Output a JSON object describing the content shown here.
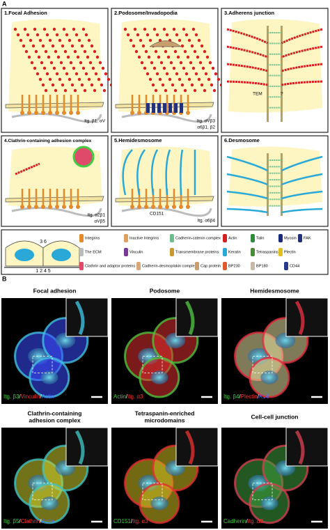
{
  "figure": {
    "panel_a_label": "A",
    "panel_b_label": "B"
  },
  "schematics": [
    {
      "title": "1.Focal Adhesion",
      "notes": [
        "Itg. β1, αV"
      ]
    },
    {
      "title": "2.Podosome/Invadopodia",
      "notes": [
        "Itg. αVβ3",
        "α6β1, β2"
      ]
    },
    {
      "title": "3.Adherens junction",
      "notes": [
        "TEM",
        "?"
      ]
    },
    {
      "title": "4.Clathrin-containing adhesion complex",
      "notes": [
        "Itg. α2β1",
        "αVβ5"
      ]
    },
    {
      "title": "5.Hemidesmosome",
      "notes": [
        "CD151",
        "Itg. α6β4"
      ]
    },
    {
      "title": "6.Desmosome",
      "notes": []
    }
  ],
  "legend": {
    "cell_numbers_top": "3 6",
    "cell_numbers_bottom": "1 2 4 5",
    "rows": [
      [
        {
          "label": "Integrins",
          "color": "#e58a2a"
        },
        {
          "label": "Inactive Integrins",
          "color": "#e0a060"
        },
        {
          "label": "Cadherin-catenin complex",
          "color": "#6bbf8a"
        },
        {
          "label": "Actin",
          "color": "#d62020"
        },
        {
          "label": "Talin",
          "color": "#2e8b3a"
        },
        {
          "label": "Myosin",
          "color": "#1a2a7a"
        },
        {
          "label": "FAK",
          "color": "#23307a"
        }
      ],
      [
        {
          "label": "The ECM",
          "color": "#bbbbbb"
        },
        {
          "label": "Vinculin",
          "color": "#7a3a9a"
        },
        {
          "label": "Transmembrane proteins",
          "color": "#c89a30"
        },
        {
          "label": "Keratin",
          "color": "#2aa8d8"
        },
        {
          "label": "Tetraspanins",
          "color": "#4a8a3a"
        },
        {
          "label": "Plectin",
          "color": "#e0c020"
        }
      ],
      [
        {
          "label": "Clathrin and adaptor proteins",
          "color": "#e04a6a"
        },
        {
          "label": "Cadherin-desmoplakin complex",
          "color": "#d9a87a"
        },
        {
          "label": "Cap protein",
          "color": "#c8a070"
        },
        {
          "label": "BP230",
          "color": "#e05a30"
        },
        {
          "label": "BP180",
          "color": "#c8b8a8"
        },
        {
          "label": "CD44",
          "color": "#2a3a8a"
        }
      ]
    ]
  },
  "micrographs": [
    {
      "title": [
        "Focal adhesion"
      ],
      "stain": [
        {
          "text": "Itg. β3",
          "color": "#3ccf3c"
        },
        {
          "text": "/",
          "color": "#ffffff"
        },
        {
          "text": "Vinculin",
          "color": "#ff3030"
        },
        {
          "text": "/",
          "color": "#ffffff"
        },
        {
          "text": "Actin",
          "color": "#4a6aff"
        }
      ]
    },
    {
      "title": [
        "Podosome"
      ],
      "stain": [
        {
          "text": "Actin",
          "color": "#3ccf3c"
        },
        {
          "text": "/",
          "color": "#ffffff"
        },
        {
          "text": "Itg. α3",
          "color": "#ff3030"
        }
      ]
    },
    {
      "title": [
        "Hemidesmosome"
      ],
      "stain": [
        {
          "text": "Itg. β4",
          "color": "#3ccf3c"
        },
        {
          "text": "/",
          "color": "#ffffff"
        },
        {
          "text": "Plectin",
          "color": "#ff3030"
        },
        {
          "text": "/",
          "color": "#ffffff"
        },
        {
          "text": "K14",
          "color": "#4a6aff"
        }
      ]
    },
    {
      "title": [
        "Clathrin-containing",
        "adhesion complex"
      ],
      "stain": [
        {
          "text": "Itg. β5",
          "color": "#3ccf3c"
        },
        {
          "text": "/",
          "color": "#ffffff"
        },
        {
          "text": "Clathrin",
          "color": "#ff3030"
        },
        {
          "text": "/",
          "color": "#ffffff"
        },
        {
          "text": "Actin",
          "color": "#4a6aff"
        }
      ]
    },
    {
      "title": [
        "Tetraspanin-enriched",
        "microdomains"
      ],
      "stain": [
        {
          "text": "CD151",
          "color": "#3ccf3c"
        },
        {
          "text": "/",
          "color": "#ffffff"
        },
        {
          "text": "Itg. α3",
          "color": "#ff3030"
        }
      ]
    },
    {
      "title": [
        "Cell-cell junction"
      ],
      "stain": [
        {
          "text": "Cadherin",
          "color": "#3ccf3c"
        },
        {
          "text": "/",
          "color": "#ffffff"
        },
        {
          "text": "Itg. α3",
          "color": "#ff3030"
        }
      ]
    }
  ]
}
